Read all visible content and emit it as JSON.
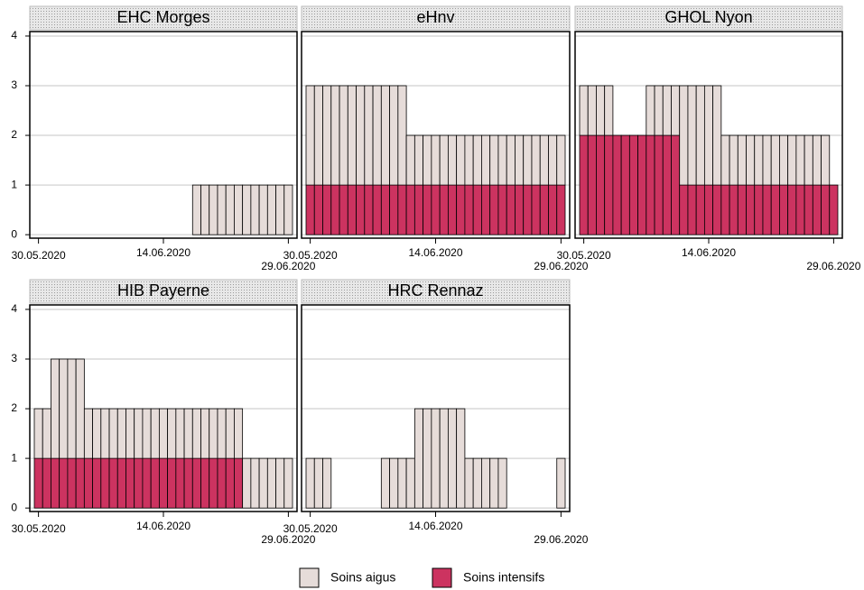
{
  "chart_data": [
    {
      "type": "bar",
      "title": "EHC Morges",
      "stacked": true,
      "grid": true,
      "ylim": [
        -0.07,
        4.09
      ],
      "yticks": [
        0,
        1,
        2,
        3,
        4
      ],
      "categories": [
        "30.05.2020",
        null,
        null,
        null,
        null,
        null,
        null,
        null,
        null,
        null,
        null,
        null,
        null,
        null,
        null,
        "14.06.2020",
        null,
        null,
        null,
        null,
        null,
        null,
        null,
        null,
        null,
        null,
        null,
        null,
        null,
        null,
        "29.06.2020"
      ],
      "series": [
        {
          "name": "Soins aigus",
          "color": "#e6dcd9",
          "values": [
            0,
            0,
            0,
            0,
            0,
            0,
            0,
            0,
            0,
            0,
            0,
            0,
            0,
            0,
            0,
            0,
            0,
            0,
            0,
            1,
            1,
            1,
            1,
            1,
            1,
            1,
            1,
            1,
            1,
            1,
            1
          ]
        },
        {
          "name": "Soins intensifs",
          "color": "#cc3360",
          "values": [
            0,
            0,
            0,
            0,
            0,
            0,
            0,
            0,
            0,
            0,
            0,
            0,
            0,
            0,
            0,
            0,
            0,
            0,
            0,
            0,
            0,
            0,
            0,
            0,
            0,
            0,
            0,
            0,
            0,
            0,
            0
          ]
        }
      ]
    },
    {
      "type": "bar",
      "title": "eHnv",
      "stacked": true,
      "grid": true,
      "ylim": [
        -0.07,
        4.09
      ],
      "yticks": [
        0,
        1,
        2,
        3,
        4
      ],
      "categories": [
        "30.05.2020",
        null,
        null,
        null,
        null,
        null,
        null,
        null,
        null,
        null,
        null,
        null,
        null,
        null,
        null,
        "14.06.2020",
        null,
        null,
        null,
        null,
        null,
        null,
        null,
        null,
        null,
        null,
        null,
        null,
        null,
        null,
        "29.06.2020"
      ],
      "series": [
        {
          "name": "Soins aigus",
          "color": "#e6dcd9",
          "values": [
            2,
            2,
            2,
            2,
            2,
            2,
            2,
            2,
            2,
            2,
            2,
            2,
            1,
            1,
            1,
            1,
            1,
            1,
            1,
            1,
            1,
            1,
            1,
            1,
            1,
            1,
            1,
            1,
            1,
            1,
            1
          ]
        },
        {
          "name": "Soins intensifs",
          "color": "#cc3360",
          "values": [
            1,
            1,
            1,
            1,
            1,
            1,
            1,
            1,
            1,
            1,
            1,
            1,
            1,
            1,
            1,
            1,
            1,
            1,
            1,
            1,
            1,
            1,
            1,
            1,
            1,
            1,
            1,
            1,
            1,
            1,
            1
          ]
        }
      ]
    },
    {
      "type": "bar",
      "title": "GHOL Nyon",
      "stacked": true,
      "grid": true,
      "ylim": [
        -0.07,
        4.09
      ],
      "yticks": [
        0,
        1,
        2,
        3,
        4
      ],
      "categories": [
        "30.05.2020",
        null,
        null,
        null,
        null,
        null,
        null,
        null,
        null,
        null,
        null,
        null,
        null,
        null,
        null,
        "14.06.2020",
        null,
        null,
        null,
        null,
        null,
        null,
        null,
        null,
        null,
        null,
        null,
        null,
        null,
        null,
        "29.06.2020"
      ],
      "series": [
        {
          "name": "Soins aigus",
          "color": "#e6dcd9",
          "values": [
            1,
            1,
            1,
            1,
            0,
            0,
            0,
            0,
            1,
            1,
            1,
            1,
            2,
            2,
            2,
            2,
            2,
            1,
            1,
            1,
            1,
            1,
            1,
            1,
            1,
            1,
            1,
            1,
            1,
            1,
            0
          ]
        },
        {
          "name": "Soins intensifs",
          "color": "#cc3360",
          "values": [
            2,
            2,
            2,
            2,
            2,
            2,
            2,
            2,
            2,
            2,
            2,
            2,
            1,
            1,
            1,
            1,
            1,
            1,
            1,
            1,
            1,
            1,
            1,
            1,
            1,
            1,
            1,
            1,
            1,
            1,
            1
          ]
        }
      ]
    },
    {
      "type": "bar",
      "title": "HIB Payerne",
      "stacked": true,
      "grid": true,
      "ylim": [
        -0.07,
        4.09
      ],
      "yticks": [
        0,
        1,
        2,
        3,
        4
      ],
      "categories": [
        "30.05.2020",
        null,
        null,
        null,
        null,
        null,
        null,
        null,
        null,
        null,
        null,
        null,
        null,
        null,
        null,
        "14.06.2020",
        null,
        null,
        null,
        null,
        null,
        null,
        null,
        null,
        null,
        null,
        null,
        null,
        null,
        null,
        "29.06.2020"
      ],
      "series": [
        {
          "name": "Soins aigus",
          "color": "#e6dcd9",
          "values": [
            1,
            1,
            2,
            2,
            2,
            2,
            1,
            1,
            1,
            1,
            1,
            1,
            1,
            1,
            1,
            1,
            1,
            1,
            1,
            1,
            1,
            1,
            1,
            1,
            1,
            1,
            1,
            1,
            1,
            1,
            1
          ]
        },
        {
          "name": "Soins intensifs",
          "color": "#cc3360",
          "values": [
            1,
            1,
            1,
            1,
            1,
            1,
            1,
            1,
            1,
            1,
            1,
            1,
            1,
            1,
            1,
            1,
            1,
            1,
            1,
            1,
            1,
            1,
            1,
            1,
            1,
            0,
            0,
            0,
            0,
            0,
            0
          ]
        }
      ]
    },
    {
      "type": "bar",
      "title": "HRC Rennaz",
      "stacked": true,
      "grid": true,
      "ylim": [
        -0.07,
        4.09
      ],
      "yticks": [
        0,
        1,
        2,
        3,
        4
      ],
      "categories": [
        "30.05.2020",
        null,
        null,
        null,
        null,
        null,
        null,
        null,
        null,
        null,
        null,
        null,
        null,
        null,
        null,
        "14.06.2020",
        null,
        null,
        null,
        null,
        null,
        null,
        null,
        null,
        null,
        null,
        null,
        null,
        null,
        null,
        "29.06.2020"
      ],
      "series": [
        {
          "name": "Soins aigus",
          "color": "#e6dcd9",
          "values": [
            1,
            1,
            1,
            0,
            0,
            0,
            0,
            0,
            0,
            1,
            1,
            1,
            1,
            2,
            2,
            2,
            2,
            2,
            2,
            1,
            1,
            1,
            1,
            1,
            0,
            0,
            0,
            0,
            0,
            0,
            1
          ]
        },
        {
          "name": "Soins intensifs",
          "color": "#cc3360",
          "values": [
            0,
            0,
            0,
            0,
            0,
            0,
            0,
            0,
            0,
            0,
            0,
            0,
            0,
            0,
            0,
            0,
            0,
            0,
            0,
            0,
            0,
            0,
            0,
            0,
            0,
            0,
            0,
            0,
            0,
            0,
            0
          ]
        }
      ]
    }
  ]
}
